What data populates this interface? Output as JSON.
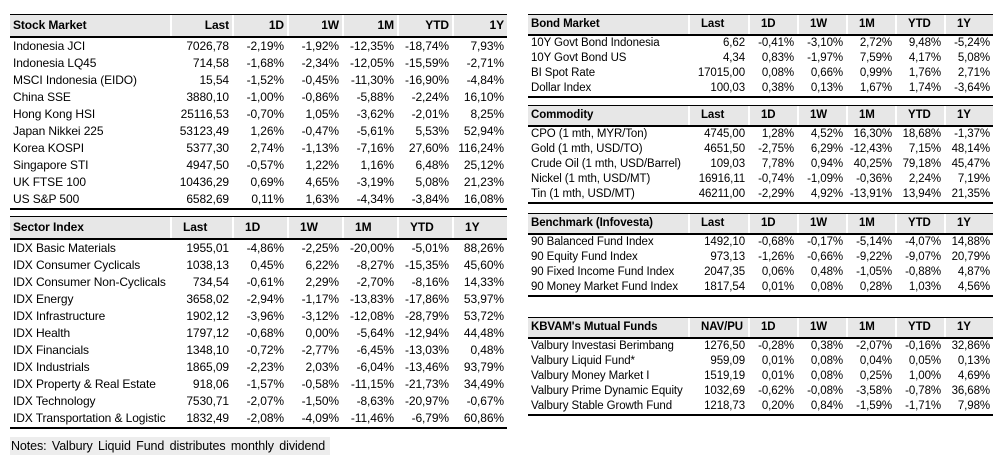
{
  "notes": "Notes: Valbury Liquid Fund distributes monthly dividend",
  "header_bg_color": "#e7e7e7",
  "border_color": "#000000",
  "tables": {
    "stock": {
      "title": "Stock Market",
      "headers": [
        "Last",
        "1D",
        "1W",
        "1M",
        "YTD",
        "1Y"
      ],
      "rows": [
        [
          "Indonesia JCI",
          "7026,78",
          "-2,19%",
          "-1,92%",
          "-12,35%",
          "-18,74%",
          "7,93%"
        ],
        [
          "Indonesia LQ45",
          "714,58",
          "-1,68%",
          "-2,34%",
          "-12,05%",
          "-15,59%",
          "-2,71%"
        ],
        [
          "MSCI Indonesia (EIDO)",
          "15,54",
          "-1,52%",
          "-0,45%",
          "-11,30%",
          "-16,90%",
          "-4,84%"
        ],
        [
          "China SSE",
          "3880,10",
          "-1,00%",
          "-0,86%",
          "-5,88%",
          "-2,24%",
          "16,10%"
        ],
        [
          "Hong Kong HSI",
          "25116,53",
          "-0,70%",
          "1,05%",
          "-3,62%",
          "-2,01%",
          "8,25%"
        ],
        [
          "Japan Nikkei 225",
          "53123,49",
          "1,26%",
          "-0,47%",
          "-5,61%",
          "5,53%",
          "52,94%"
        ],
        [
          "Korea KOSPI",
          "5377,30",
          "2,74%",
          "-1,13%",
          "-7,16%",
          "27,60%",
          "116,24%"
        ],
        [
          "Singapore STI",
          "4947,50",
          "-0,57%",
          "1,22%",
          "1,16%",
          "6,48%",
          "25,12%"
        ],
        [
          "UK FTSE 100",
          "10436,29",
          "0,69%",
          "4,65%",
          "-3,19%",
          "5,08%",
          "21,23%"
        ],
        [
          "US S&P 500",
          "6582,69",
          "0,11%",
          "1,63%",
          "-4,34%",
          "-3,84%",
          "16,08%"
        ]
      ]
    },
    "sector": {
      "title": "Sector Index",
      "headers": [
        "Last",
        "1D",
        "1W",
        "1M",
        "YTD",
        "1Y"
      ],
      "rows": [
        [
          "IDX Basic Materials",
          "1955,01",
          "-4,86%",
          "-2,25%",
          "-20,00%",
          "-5,01%",
          "88,26%"
        ],
        [
          "IDX Consumer Cyclicals",
          "1038,13",
          "0,45%",
          "6,22%",
          "-8,27%",
          "-15,35%",
          "45,60%"
        ],
        [
          "IDX Consumer Non-Cyclicals",
          "734,54",
          "-0,61%",
          "2,29%",
          "-2,70%",
          "-8,16%",
          "14,33%"
        ],
        [
          "IDX Energy",
          "3658,02",
          "-2,94%",
          "-1,17%",
          "-13,83%",
          "-17,86%",
          "53,97%"
        ],
        [
          "IDX Infrastructure",
          "1902,12",
          "-3,96%",
          "-3,12%",
          "-12,08%",
          "-28,79%",
          "53,72%"
        ],
        [
          "IDX Health",
          "1797,12",
          "-0,68%",
          "0,00%",
          "-5,64%",
          "-12,94%",
          "44,48%"
        ],
        [
          "IDX Financials",
          "1348,10",
          "-0,72%",
          "-2,77%",
          "-6,45%",
          "-13,03%",
          "0,48%"
        ],
        [
          "IDX Industrials",
          "1865,09",
          "-2,23%",
          "2,03%",
          "-6,04%",
          "-13,46%",
          "93,79%"
        ],
        [
          "IDX Property & Real Estate",
          "918,06",
          "-1,57%",
          "-0,58%",
          "-11,15%",
          "-21,73%",
          "34,49%"
        ],
        [
          "IDX Technology",
          "7530,71",
          "-2,07%",
          "-1,50%",
          "-8,63%",
          "-20,97%",
          "-0,67%"
        ],
        [
          "IDX Transportation & Logistic",
          "1832,49",
          "-2,08%",
          "-4,09%",
          "-11,46%",
          "-6,79%",
          "60,86%"
        ]
      ]
    },
    "bond": {
      "title": "Bond Market",
      "headers": [
        "Last",
        "1D",
        "1W",
        "1M",
        "YTD",
        "1Y"
      ],
      "rows": [
        [
          "10Y Govt Bond Indonesia",
          "6,62",
          "-0,41%",
          "-3,10%",
          "2,72%",
          "9,48%",
          "-5,24%"
        ],
        [
          "10Y Govt Bond US",
          "4,34",
          "0,83%",
          "-1,97%",
          "7,59%",
          "4,17%",
          "5,08%"
        ],
        [
          "BI Spot Rate",
          "17015,00",
          "0,08%",
          "0,66%",
          "0,99%",
          "1,76%",
          "2,71%"
        ],
        [
          "Dollar Index",
          "100,03",
          "0,38%",
          "0,13%",
          "1,67%",
          "1,74%",
          "-3,64%"
        ]
      ]
    },
    "commodity": {
      "title": "Commodity",
      "headers": [
        "Last",
        "1D",
        "1W",
        "1M",
        "YTD",
        "1Y"
      ],
      "rows": [
        [
          "CPO (1 mth, MYR/Ton)",
          "4745,00",
          "1,28%",
          "4,52%",
          "16,30%",
          "18,68%",
          "-1,37%"
        ],
        [
          "Gold (1 mth, USD/TO)",
          "4651,50",
          "-2,75%",
          "6,29%",
          "-12,43%",
          "7,15%",
          "48,14%"
        ],
        [
          "Crude Oil (1 mth, USD/Barrel)",
          "109,03",
          "7,78%",
          "0,94%",
          "40,25%",
          "79,18%",
          "45,47%"
        ],
        [
          "Nickel (1 mth, USD/MT)",
          "16916,11",
          "-0,74%",
          "-1,09%",
          "-0,36%",
          "2,24%",
          "7,19%"
        ],
        [
          "Tin (1 mth, USD/MT)",
          "46211,00",
          "-2,29%",
          "4,92%",
          "-13,91%",
          "13,94%",
          "21,35%"
        ]
      ]
    },
    "benchmark": {
      "title": "Benchmark (Infovesta)",
      "headers": [
        "Last",
        "1D",
        "1W",
        "1M",
        "YTD",
        "1Y"
      ],
      "rows": [
        [
          "90 Balanced Fund Index",
          "1492,10",
          "-0,68%",
          "-0,17%",
          "-5,14%",
          "-4,07%",
          "14,88%"
        ],
        [
          "90 Equity Fund Index",
          "973,13",
          "-1,26%",
          "-0,66%",
          "-9,22%",
          "-9,07%",
          "20,79%"
        ],
        [
          "90 Fixed Income Fund Index",
          "2047,35",
          "0,06%",
          "0,48%",
          "-1,05%",
          "-0,88%",
          "4,87%"
        ],
        [
          "90 Money Market Fund Index",
          "1817,54",
          "0,01%",
          "0,08%",
          "0,28%",
          "1,03%",
          "4,56%"
        ]
      ]
    },
    "funds": {
      "title": "KBVAM's Mutual Funds",
      "headers": [
        "NAV/PU",
        "1D",
        "1W",
        "1M",
        "YTD",
        "1Y"
      ],
      "rows": [
        [
          "Valbury Investasi Berimbang",
          "1276,50",
          "-0,28%",
          "0,38%",
          "-2,07%",
          "-0,16%",
          "32,86%"
        ],
        [
          "Valbury Liquid Fund*",
          "959,09",
          "0,01%",
          "0,08%",
          "0,04%",
          "0,05%",
          "0,13%"
        ],
        [
          "Valbury Money Market I",
          "1519,19",
          "0,01%",
          "0,08%",
          "0,25%",
          "1,00%",
          "4,69%"
        ],
        [
          "Valbury Prime Dynamic Equity",
          "1032,69",
          "-0,62%",
          "-0,08%",
          "-3,58%",
          "-0,78%",
          "36,68%"
        ],
        [
          "Valbury Stable Growth Fund",
          "1218,73",
          "0,20%",
          "0,84%",
          "-1,59%",
          "-1,71%",
          "7,98%"
        ]
      ]
    }
  }
}
